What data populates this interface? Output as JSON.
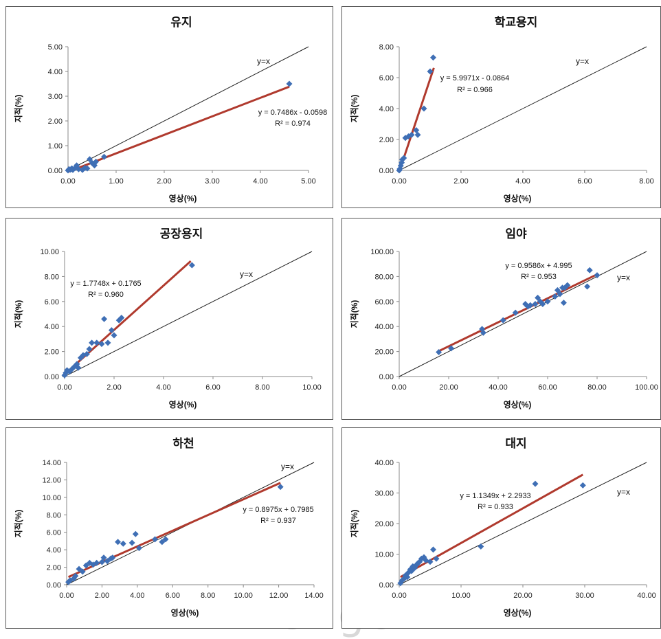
{
  "watermark": "www.kci.go.kr",
  "chart_data": [
    {
      "type": "scatter",
      "title": "유지",
      "xlabel": "영상(%)",
      "ylabel": "지적(%)",
      "xlim": [
        0,
        5
      ],
      "ylim": [
        0,
        5
      ],
      "xticks": [
        "0.00",
        "1.00",
        "2.00",
        "3.00",
        "4.00",
        "5.00"
      ],
      "yticks": [
        "0.00",
        "1.00",
        "2.00",
        "3.00",
        "4.00",
        "5.00"
      ],
      "grid": false,
      "points": [
        [
          0.0,
          0.0
        ],
        [
          0.02,
          0.05
        ],
        [
          0.05,
          0.03
        ],
        [
          0.08,
          0.08
        ],
        [
          0.1,
          0.02
        ],
        [
          0.15,
          0.1
        ],
        [
          0.18,
          0.2
        ],
        [
          0.22,
          0.05
        ],
        [
          0.3,
          0.02
        ],
        [
          0.35,
          0.1
        ],
        [
          0.4,
          0.08
        ],
        [
          0.45,
          0.45
        ],
        [
          0.5,
          0.3
        ],
        [
          0.55,
          0.2
        ],
        [
          0.58,
          0.35
        ],
        [
          0.75,
          0.55
        ],
        [
          4.6,
          3.5
        ]
      ],
      "fit": {
        "slope": 0.7486,
        "intercept": -0.0598,
        "x_range": [
          0.0,
          4.6
        ],
        "label": "y = 0.7486x - 0.0598",
        "r2_label": "R² = 0.974"
      },
      "identity_label": "y=x",
      "point_color": "#3f6fb5",
      "fit_color": "#b03a2e"
    },
    {
      "type": "scatter",
      "title": "학교용지",
      "xlabel": "영상(%)",
      "ylabel": "지적(%)",
      "xlim": [
        0,
        8
      ],
      "ylim": [
        0,
        8
      ],
      "xticks": [
        "0.00",
        "2.00",
        "4.00",
        "6.00",
        "8.00"
      ],
      "yticks": [
        "0.00",
        "2.00",
        "4.00",
        "6.00",
        "8.00"
      ],
      "grid": false,
      "points": [
        [
          0.0,
          0.0
        ],
        [
          0.02,
          0.1
        ],
        [
          0.05,
          0.3
        ],
        [
          0.08,
          0.5
        ],
        [
          0.1,
          0.7
        ],
        [
          0.15,
          0.8
        ],
        [
          0.2,
          2.1
        ],
        [
          0.3,
          2.2
        ],
        [
          0.4,
          2.3
        ],
        [
          0.55,
          2.6
        ],
        [
          0.6,
          2.3
        ],
        [
          0.8,
          4.0
        ],
        [
          1.0,
          6.4
        ],
        [
          1.1,
          7.3
        ]
      ],
      "fit": {
        "slope": 5.9971,
        "intercept": -0.0864,
        "x_range": [
          0.02,
          1.12
        ],
        "label": "y = 5.9971x - 0.0864",
        "r2_label": "R² = 0.966"
      },
      "identity_label": "y=x",
      "point_color": "#3f6fb5",
      "fit_color": "#b03a2e"
    },
    {
      "type": "scatter",
      "title": "공장용지",
      "xlabel": "영상(%)",
      "ylabel": "지적(%)",
      "xlim": [
        0,
        10
      ],
      "ylim": [
        0,
        10
      ],
      "xticks": [
        "0.00",
        "2.00",
        "4.00",
        "6.00",
        "8.00",
        "10.00"
      ],
      "yticks": [
        "0.00",
        "2.00",
        "4.00",
        "6.00",
        "8.00",
        "10.00"
      ],
      "grid": false,
      "points": [
        [
          0.0,
          0.1
        ],
        [
          0.05,
          0.3
        ],
        [
          0.1,
          0.5
        ],
        [
          0.2,
          0.4
        ],
        [
          0.3,
          0.6
        ],
        [
          0.4,
          0.8
        ],
        [
          0.5,
          1.0
        ],
        [
          0.55,
          0.7
        ],
        [
          0.65,
          1.5
        ],
        [
          0.75,
          1.7
        ],
        [
          0.9,
          1.8
        ],
        [
          1.0,
          2.2
        ],
        [
          1.1,
          2.7
        ],
        [
          1.3,
          2.7
        ],
        [
          1.5,
          2.6
        ],
        [
          1.6,
          4.6
        ],
        [
          1.75,
          2.7
        ],
        [
          1.9,
          3.7
        ],
        [
          2.0,
          3.3
        ],
        [
          2.2,
          4.5
        ],
        [
          2.3,
          4.7
        ],
        [
          5.15,
          8.9
        ]
      ],
      "fit": {
        "slope": 1.7748,
        "intercept": 0.1765,
        "x_range": [
          0.0,
          5.1
        ],
        "label": "y = 1.7748x + 0.1765",
        "r2_label": "R² = 0.960"
      },
      "identity_label": "y=x",
      "point_color": "#3f6fb5",
      "fit_color": "#b03a2e"
    },
    {
      "type": "scatter",
      "title": "임야",
      "xlabel": "영상(%)",
      "ylabel": "지적(%)",
      "xlim": [
        0,
        100
      ],
      "ylim": [
        0,
        100
      ],
      "xticks": [
        "0.00",
        "20.00",
        "40.00",
        "60.00",
        "80.00",
        "100.00"
      ],
      "yticks": [
        "0.00",
        "20.00",
        "40.00",
        "60.00",
        "80.00",
        "100.00"
      ],
      "grid": false,
      "points": [
        [
          16,
          19.5
        ],
        [
          21,
          22.5
        ],
        [
          33.5,
          38
        ],
        [
          34,
          35
        ],
        [
          42,
          45
        ],
        [
          47,
          51
        ],
        [
          51,
          58
        ],
        [
          52,
          56
        ],
        [
          53,
          57
        ],
        [
          55,
          58
        ],
        [
          56,
          63
        ],
        [
          57,
          60
        ],
        [
          58,
          58
        ],
        [
          60,
          60
        ],
        [
          63,
          64
        ],
        [
          64,
          69
        ],
        [
          65,
          66
        ],
        [
          66,
          71
        ],
        [
          66.5,
          59
        ],
        [
          67,
          71
        ],
        [
          68,
          73
        ],
        [
          76,
          72
        ],
        [
          77,
          85
        ],
        [
          80,
          81
        ]
      ],
      "fit": {
        "slope": 0.9586,
        "intercept": 4.995,
        "x_range": [
          16,
          80
        ],
        "label": "y = 0.9586x + 4.995",
        "r2_label": "R² = 0.953"
      },
      "identity_label": "y=x",
      "point_color": "#3f6fb5",
      "fit_color": "#b03a2e"
    },
    {
      "type": "scatter",
      "title": "하천",
      "xlabel": "영상(%)",
      "ylabel": "지적(%)",
      "xlim": [
        0,
        14
      ],
      "ylim": [
        0,
        14
      ],
      "xticks": [
        "0.00",
        "2.00",
        "4.00",
        "6.00",
        "8.00",
        "10.00",
        "12.00",
        "14.00"
      ],
      "yticks": [
        "0.00",
        "2.00",
        "4.00",
        "6.00",
        "8.00",
        "10.00",
        "12.00",
        "14.00"
      ],
      "grid": false,
      "points": [
        [
          0.1,
          0.3
        ],
        [
          0.2,
          0.5
        ],
        [
          0.4,
          0.7
        ],
        [
          0.5,
          1.0
        ],
        [
          0.7,
          1.8
        ],
        [
          0.9,
          1.5
        ],
        [
          1.1,
          2.2
        ],
        [
          1.3,
          2.5
        ],
        [
          1.5,
          2.3
        ],
        [
          1.7,
          2.5
        ],
        [
          2.0,
          2.6
        ],
        [
          2.1,
          3.1
        ],
        [
          2.3,
          2.7
        ],
        [
          2.5,
          3.0
        ],
        [
          2.6,
          3.1
        ],
        [
          2.9,
          4.9
        ],
        [
          3.2,
          4.7
        ],
        [
          3.7,
          4.8
        ],
        [
          3.9,
          5.8
        ],
        [
          4.1,
          4.2
        ],
        [
          5.0,
          5.2
        ],
        [
          5.4,
          4.9
        ],
        [
          5.6,
          5.2
        ],
        [
          12.1,
          11.2
        ]
      ],
      "fit": {
        "slope": 0.8975,
        "intercept": 0.7985,
        "x_range": [
          0.1,
          12.1
        ],
        "label": "y = 0.8975x + 0.7985",
        "r2_label": "R² = 0.937"
      },
      "identity_label": "y=x",
      "point_color": "#3f6fb5",
      "fit_color": "#b03a2e"
    },
    {
      "type": "scatter",
      "title": "대지",
      "xlabel": "영상(%)",
      "ylabel": "지적(%)",
      "xlim": [
        0,
        40
      ],
      "ylim": [
        0,
        40
      ],
      "xticks": [
        "0.00",
        "10.00",
        "20.00",
        "30.00",
        "40.00"
      ],
      "yticks": [
        "0.00",
        "10.00",
        "20.00",
        "30.00",
        "40.00"
      ],
      "grid": false,
      "points": [
        [
          0.2,
          0.5
        ],
        [
          0.5,
          1.5
        ],
        [
          0.8,
          2.0
        ],
        [
          1.0,
          3.0
        ],
        [
          1.3,
          2.5
        ],
        [
          1.5,
          4.0
        ],
        [
          1.8,
          5.0
        ],
        [
          2.0,
          4.5
        ],
        [
          2.2,
          6.0
        ],
        [
          2.5,
          5.5
        ],
        [
          2.8,
          6.5
        ],
        [
          3.0,
          7.0
        ],
        [
          3.3,
          7.5
        ],
        [
          3.6,
          8.5
        ],
        [
          4.0,
          9.0
        ],
        [
          4.3,
          8.0
        ],
        [
          5.0,
          7.5
        ],
        [
          5.5,
          11.5
        ],
        [
          6.0,
          8.5
        ],
        [
          13.2,
          12.5
        ],
        [
          22.0,
          33.0
        ],
        [
          29.7,
          32.5
        ]
      ],
      "fit": {
        "slope": 1.1349,
        "intercept": 2.2933,
        "x_range": [
          0.2,
          29.7
        ],
        "label": "y = 1.1349x + 2.2933",
        "r2_label": "R² = 0.933"
      },
      "identity_label": "y=x",
      "point_color": "#3f6fb5",
      "fit_color": "#b03a2e"
    }
  ]
}
